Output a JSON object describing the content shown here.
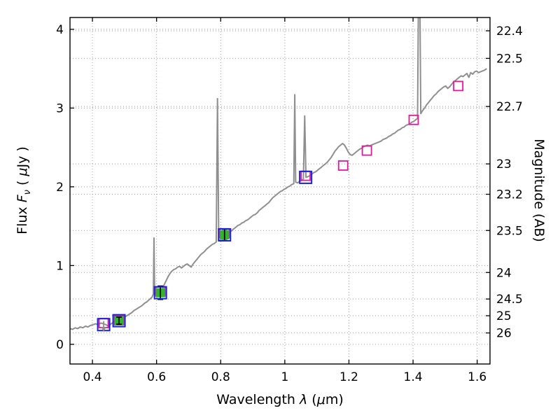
{
  "chart_data": {
    "type": "line",
    "title": "",
    "xlabel": "Wavelength λ (μm)",
    "xlabel_parts": [
      "Wavelength ",
      "λ",
      " (",
      "μ",
      "m)"
    ],
    "ylabel_left": "Flux Fν ( μJy )",
    "ylabel_left_parts": [
      "Flux ",
      "F",
      "ν",
      " ( ",
      "μ",
      "Jy )"
    ],
    "ylabel_right": "Magnitude (AB)",
    "xlim": [
      0.33,
      1.64
    ],
    "ylim_flux": [
      -0.25,
      4.15
    ],
    "x_ticks": [
      0.4,
      0.6,
      0.8,
      1.0,
      1.2,
      1.4,
      1.6
    ],
    "x_tick_labels": [
      "0.4",
      "0.6",
      "0.8",
      "1",
      "1.2",
      "1.4",
      "1.6"
    ],
    "y_left_ticks": [
      0,
      1,
      2,
      3,
      4
    ],
    "y_left_tick_labels": [
      "0",
      "1",
      "2",
      "3",
      "4"
    ],
    "y_right_ticks": [
      22.4,
      22.5,
      22.7,
      23,
      23.2,
      23.5,
      24,
      24.5,
      25,
      26
    ],
    "y_right_tick_labels": [
      "22.4",
      "22.5",
      "22.7",
      "23",
      "23.2",
      "23.5",
      "24",
      "24.5",
      "25",
      "26"
    ],
    "magnitude_zeropoint_ab": 23.9,
    "grid": {
      "show": true,
      "style": "dotted"
    },
    "legend": {
      "show": false
    },
    "colors": {
      "frame": "#000000",
      "grid": "#9c9c9c",
      "spectrum": "#8f8f8f",
      "observed_edge": "#1822dd",
      "observed_fill": "#2db52d",
      "model_edge": "#e2189c",
      "error_bar": "#000000",
      "upper_limit_arrow": "#8f8f8f",
      "tick_label": "#000000"
    },
    "series": {
      "model_spectrum": {
        "label": "model-spectrum",
        "points": [
          [
            0.33,
            0.2
          ],
          [
            0.338,
            0.19
          ],
          [
            0.346,
            0.21
          ],
          [
            0.354,
            0.2
          ],
          [
            0.362,
            0.22
          ],
          [
            0.37,
            0.21
          ],
          [
            0.378,
            0.23
          ],
          [
            0.386,
            0.22
          ],
          [
            0.394,
            0.24
          ],
          [
            0.402,
            0.25
          ],
          [
            0.41,
            0.26
          ],
          [
            0.418,
            0.25
          ],
          [
            0.426,
            0.27
          ],
          [
            0.434,
            0.26
          ],
          [
            0.442,
            0.25
          ],
          [
            0.45,
            0.23
          ],
          [
            0.458,
            0.26
          ],
          [
            0.466,
            0.28
          ],
          [
            0.474,
            0.3
          ],
          [
            0.482,
            0.31
          ],
          [
            0.49,
            0.33
          ],
          [
            0.498,
            0.34
          ],
          [
            0.506,
            0.36
          ],
          [
            0.514,
            0.38
          ],
          [
            0.522,
            0.4
          ],
          [
            0.53,
            0.43
          ],
          [
            0.538,
            0.45
          ],
          [
            0.546,
            0.47
          ],
          [
            0.554,
            0.49
          ],
          [
            0.562,
            0.52
          ],
          [
            0.57,
            0.54
          ],
          [
            0.578,
            0.57
          ],
          [
            0.586,
            0.6
          ],
          [
            0.59,
            0.64
          ],
          [
            0.592,
            1.35
          ],
          [
            0.594,
            0.66
          ],
          [
            0.6,
            0.62
          ],
          [
            0.606,
            0.66
          ],
          [
            0.612,
            0.64
          ],
          [
            0.618,
            0.7
          ],
          [
            0.624,
            0.76
          ],
          [
            0.63,
            0.81
          ],
          [
            0.636,
            0.86
          ],
          [
            0.642,
            0.9
          ],
          [
            0.648,
            0.93
          ],
          [
            0.654,
            0.95
          ],
          [
            0.66,
            0.96
          ],
          [
            0.666,
            0.98
          ],
          [
            0.672,
            0.99
          ],
          [
            0.678,
            0.97
          ],
          [
            0.684,
            0.99
          ],
          [
            0.69,
            1.01
          ],
          [
            0.696,
            1.02
          ],
          [
            0.702,
            1.0
          ],
          [
            0.708,
            0.98
          ],
          [
            0.714,
            1.02
          ],
          [
            0.72,
            1.05
          ],
          [
            0.726,
            1.08
          ],
          [
            0.732,
            1.11
          ],
          [
            0.738,
            1.14
          ],
          [
            0.744,
            1.16
          ],
          [
            0.75,
            1.18
          ],
          [
            0.756,
            1.21
          ],
          [
            0.762,
            1.23
          ],
          [
            0.768,
            1.25
          ],
          [
            0.774,
            1.27
          ],
          [
            0.78,
            1.28
          ],
          [
            0.786,
            1.3
          ],
          [
            0.79,
            3.12
          ],
          [
            0.794,
            1.32
          ],
          [
            0.8,
            1.33
          ],
          [
            0.806,
            1.36
          ],
          [
            0.812,
            1.38
          ],
          [
            0.818,
            1.4
          ],
          [
            0.824,
            1.41
          ],
          [
            0.83,
            1.43
          ],
          [
            0.836,
            1.45
          ],
          [
            0.842,
            1.47
          ],
          [
            0.848,
            1.49
          ],
          [
            0.854,
            1.51
          ],
          [
            0.86,
            1.52
          ],
          [
            0.866,
            1.54
          ],
          [
            0.872,
            1.55
          ],
          [
            0.878,
            1.57
          ],
          [
            0.884,
            1.58
          ],
          [
            0.89,
            1.6
          ],
          [
            0.896,
            1.62
          ],
          [
            0.902,
            1.64
          ],
          [
            0.908,
            1.65
          ],
          [
            0.914,
            1.67
          ],
          [
            0.92,
            1.7
          ],
          [
            0.926,
            1.72
          ],
          [
            0.932,
            1.74
          ],
          [
            0.938,
            1.76
          ],
          [
            0.944,
            1.78
          ],
          [
            0.95,
            1.8
          ],
          [
            0.956,
            1.83
          ],
          [
            0.962,
            1.86
          ],
          [
            0.968,
            1.88
          ],
          [
            0.974,
            1.9
          ],
          [
            0.98,
            1.92
          ],
          [
            0.986,
            1.94
          ],
          [
            0.992,
            1.95
          ],
          [
            0.998,
            1.97
          ],
          [
            1.004,
            1.98
          ],
          [
            1.01,
            2.0
          ],
          [
            1.016,
            2.01
          ],
          [
            1.022,
            2.03
          ],
          [
            1.028,
            2.04
          ],
          [
            1.031,
            3.17
          ],
          [
            1.034,
            2.06
          ],
          [
            1.04,
            2.05
          ],
          [
            1.046,
            2.07
          ],
          [
            1.052,
            2.08
          ],
          [
            1.058,
            2.1
          ],
          [
            1.062,
            2.9
          ],
          [
            1.066,
            2.12
          ],
          [
            1.072,
            2.13
          ],
          [
            1.078,
            2.14
          ],
          [
            1.084,
            2.16
          ],
          [
            1.09,
            2.18
          ],
          [
            1.096,
            2.19
          ],
          [
            1.102,
            2.21
          ],
          [
            1.108,
            2.23
          ],
          [
            1.114,
            2.25
          ],
          [
            1.12,
            2.27
          ],
          [
            1.126,
            2.29
          ],
          [
            1.132,
            2.31
          ],
          [
            1.138,
            2.34
          ],
          [
            1.144,
            2.37
          ],
          [
            1.15,
            2.41
          ],
          [
            1.156,
            2.45
          ],
          [
            1.162,
            2.48
          ],
          [
            1.168,
            2.51
          ],
          [
            1.174,
            2.53
          ],
          [
            1.18,
            2.55
          ],
          [
            1.186,
            2.53
          ],
          [
            1.192,
            2.49
          ],
          [
            1.198,
            2.44
          ],
          [
            1.204,
            2.41
          ],
          [
            1.21,
            2.4
          ],
          [
            1.216,
            2.42
          ],
          [
            1.222,
            2.44
          ],
          [
            1.228,
            2.46
          ],
          [
            1.234,
            2.48
          ],
          [
            1.24,
            2.49
          ],
          [
            1.246,
            2.51
          ],
          [
            1.252,
            2.52
          ],
          [
            1.258,
            2.53
          ],
          [
            1.264,
            2.52
          ],
          [
            1.27,
            2.53
          ],
          [
            1.276,
            2.54
          ],
          [
            1.282,
            2.55
          ],
          [
            1.288,
            2.56
          ],
          [
            1.294,
            2.57
          ],
          [
            1.3,
            2.58
          ],
          [
            1.306,
            2.6
          ],
          [
            1.312,
            2.61
          ],
          [
            1.318,
            2.62
          ],
          [
            1.324,
            2.64
          ],
          [
            1.33,
            2.65
          ],
          [
            1.336,
            2.67
          ],
          [
            1.342,
            2.68
          ],
          [
            1.348,
            2.7
          ],
          [
            1.354,
            2.72
          ],
          [
            1.36,
            2.73
          ],
          [
            1.366,
            2.75
          ],
          [
            1.372,
            2.76
          ],
          [
            1.378,
            2.78
          ],
          [
            1.384,
            2.79
          ],
          [
            1.39,
            2.8
          ],
          [
            1.396,
            2.82
          ],
          [
            1.402,
            2.83
          ],
          [
            1.408,
            2.85
          ],
          [
            1.414,
            2.87
          ],
          [
            1.419,
            5.6
          ],
          [
            1.424,
            2.93
          ],
          [
            1.43,
            2.97
          ],
          [
            1.436,
            3.0
          ],
          [
            1.442,
            3.04
          ],
          [
            1.448,
            3.07
          ],
          [
            1.454,
            3.1
          ],
          [
            1.46,
            3.13
          ],
          [
            1.466,
            3.16
          ],
          [
            1.472,
            3.18
          ],
          [
            1.478,
            3.21
          ],
          [
            1.484,
            3.23
          ],
          [
            1.49,
            3.25
          ],
          [
            1.496,
            3.27
          ],
          [
            1.502,
            3.28
          ],
          [
            1.508,
            3.25
          ],
          [
            1.514,
            3.27
          ],
          [
            1.52,
            3.3
          ],
          [
            1.526,
            3.33
          ],
          [
            1.532,
            3.35
          ],
          [
            1.538,
            3.37
          ],
          [
            1.544,
            3.39
          ],
          [
            1.55,
            3.41
          ],
          [
            1.556,
            3.4
          ],
          [
            1.562,
            3.42
          ],
          [
            1.568,
            3.44
          ],
          [
            1.574,
            3.39
          ],
          [
            1.58,
            3.45
          ],
          [
            1.586,
            3.43
          ],
          [
            1.592,
            3.46
          ],
          [
            1.598,
            3.47
          ],
          [
            1.604,
            3.45
          ],
          [
            1.61,
            3.46
          ],
          [
            1.616,
            3.47
          ],
          [
            1.622,
            3.48
          ],
          [
            1.63,
            3.5
          ]
        ]
      },
      "observed_photometry": {
        "label": "observed-photometry",
        "points": [
          {
            "x": 0.435,
            "y": 0.25,
            "err": null,
            "filled": false,
            "upper_limit": true
          },
          {
            "x": 0.483,
            "y": 0.3,
            "err": 0.045,
            "filled": true,
            "upper_limit": false
          },
          {
            "x": 0.612,
            "y": 0.655,
            "err": 0.085,
            "filled": true,
            "upper_limit": false
          },
          {
            "x": 0.812,
            "y": 1.39,
            "err": 0.07,
            "filled": true,
            "upper_limit": false
          },
          {
            "x": 1.065,
            "y": 2.12,
            "err": null,
            "filled": false,
            "upper_limit": false
          }
        ]
      },
      "model_photometry": {
        "label": "model-photometry",
        "points": [
          [
            0.435,
            0.27
          ],
          [
            0.483,
            0.305
          ],
          [
            0.612,
            0.67
          ],
          [
            0.812,
            1.41
          ],
          [
            1.065,
            2.14
          ],
          [
            1.182,
            2.27
          ],
          [
            1.256,
            2.46
          ],
          [
            1.402,
            2.85
          ],
          [
            1.541,
            3.28
          ]
        ]
      }
    }
  }
}
